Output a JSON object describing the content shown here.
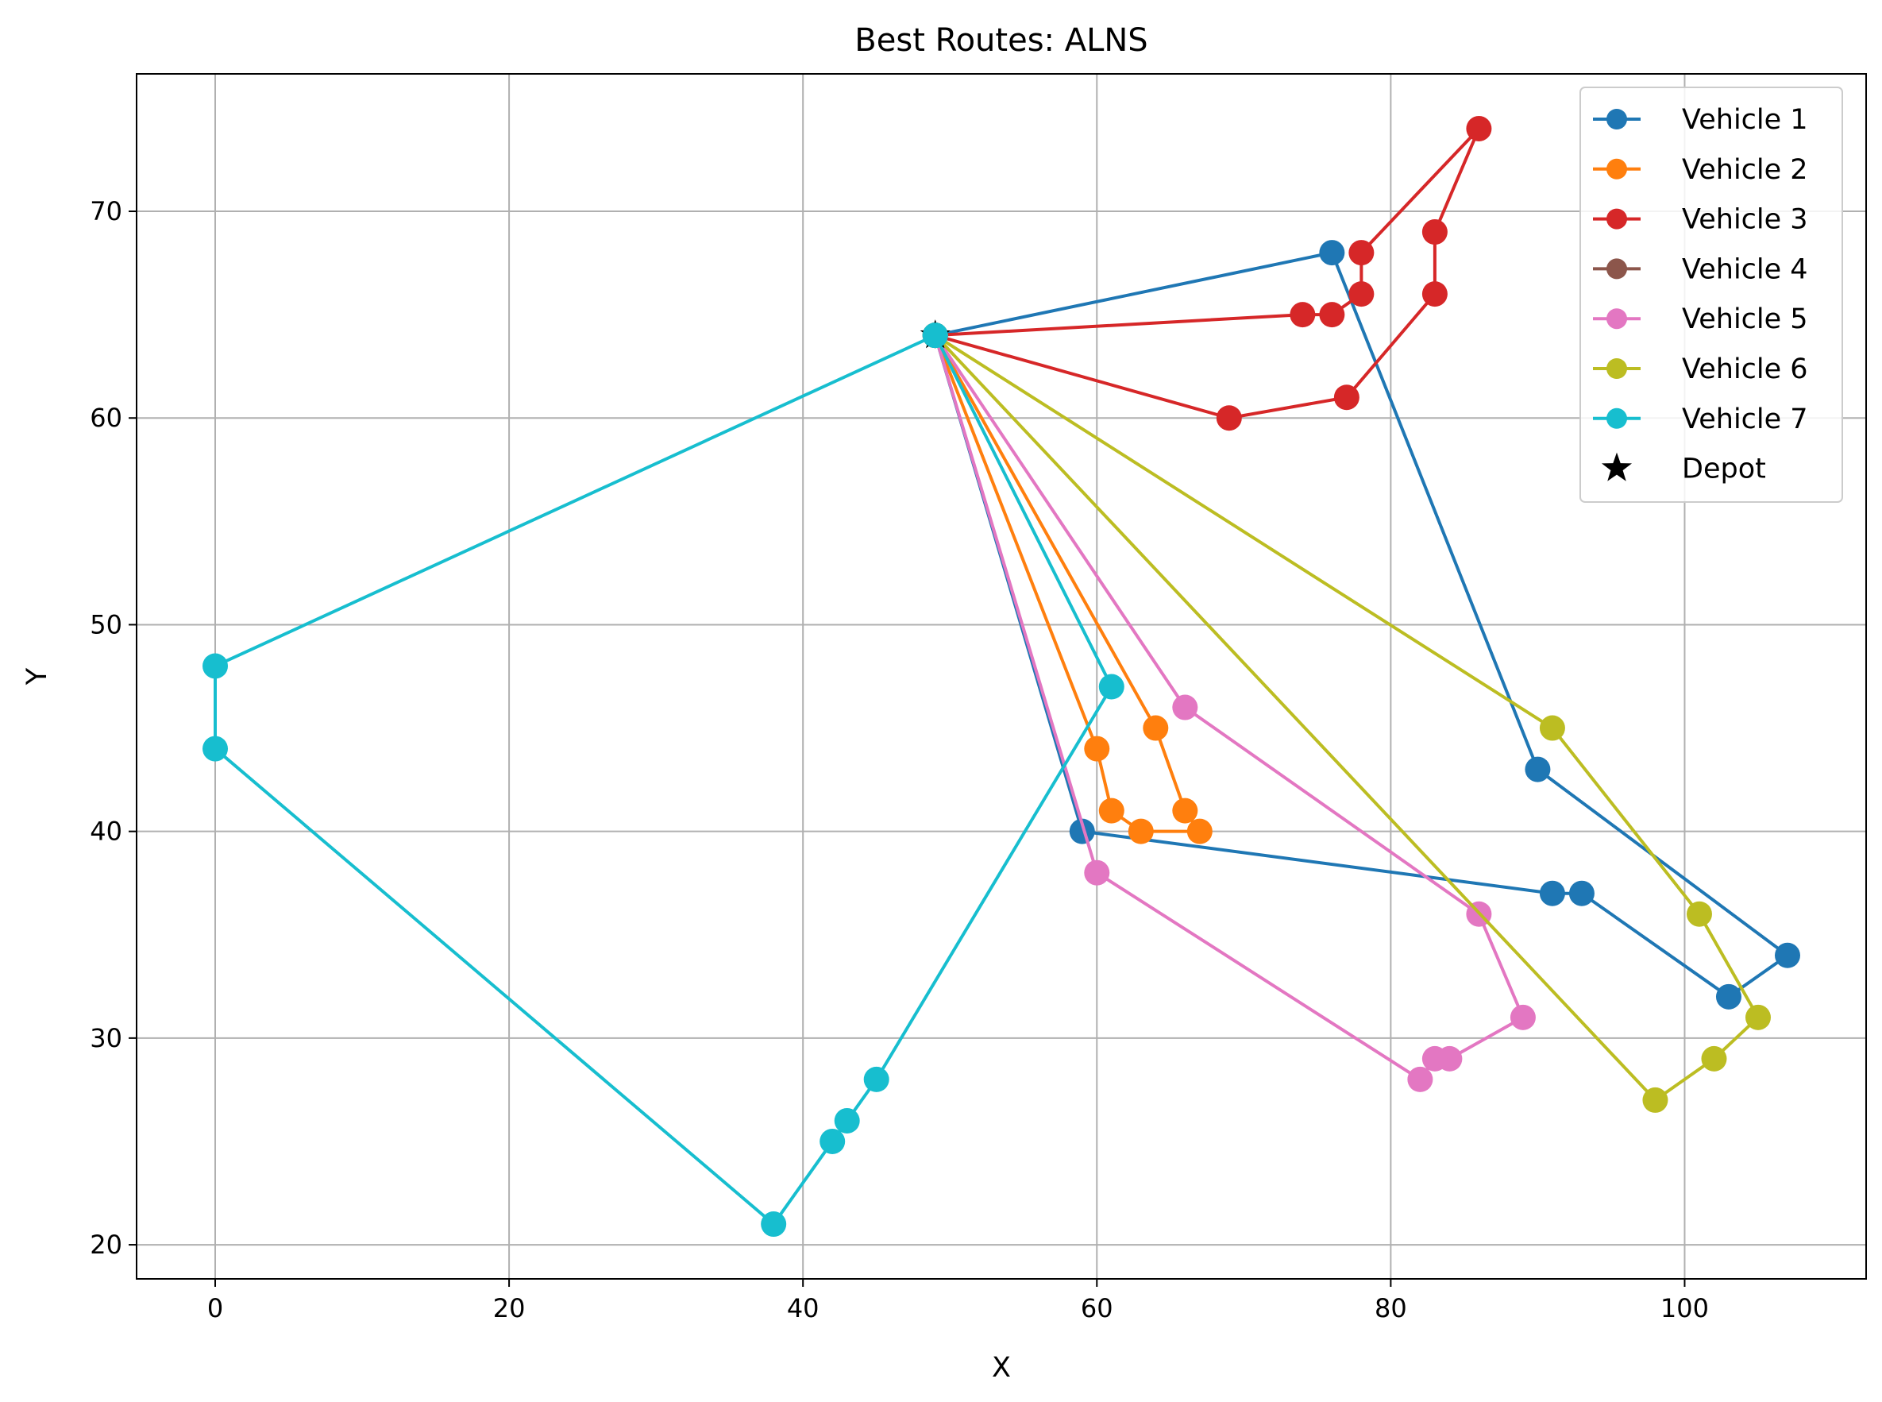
{
  "chart_data": {
    "type": "line",
    "title": "Best Routes: ALNS",
    "xlabel": "X",
    "ylabel": "Y",
    "xlim": [
      -5.35,
      112.35
    ],
    "ylim": [
      18.35,
      76.65
    ],
    "xticks": [
      0,
      20,
      40,
      60,
      80,
      100
    ],
    "yticks": [
      20,
      30,
      40,
      50,
      60,
      70
    ],
    "grid": true,
    "legend_position": "top-right",
    "depot": {
      "name": "Depot",
      "x": 49,
      "y": 64,
      "color": "#000000",
      "marker": "star"
    },
    "series": [
      {
        "name": "Vehicle 1",
        "color": "#1f77b4",
        "points": [
          [
            49,
            64
          ],
          [
            76,
            68
          ],
          [
            90,
            43
          ],
          [
            107,
            34
          ],
          [
            103,
            32
          ],
          [
            93,
            37
          ],
          [
            91,
            37
          ],
          [
            59,
            40
          ],
          [
            49,
            64
          ]
        ]
      },
      {
        "name": "Vehicle 2",
        "color": "#ff7f0e",
        "points": [
          [
            49,
            64
          ],
          [
            64,
            45
          ],
          [
            66,
            41
          ],
          [
            67,
            40
          ],
          [
            63,
            40
          ],
          [
            61,
            41
          ],
          [
            60,
            44
          ],
          [
            49,
            64
          ]
        ]
      },
      {
        "name": "Vehicle 3",
        "color": "#d62728",
        "points": [
          [
            49,
            64
          ],
          [
            69,
            60
          ],
          [
            77,
            61
          ],
          [
            83,
            66
          ],
          [
            83,
            69
          ],
          [
            86,
            74
          ],
          [
            78,
            68
          ],
          [
            78,
            66
          ],
          [
            76,
            65
          ],
          [
            74,
            65
          ],
          [
            49,
            64
          ]
        ]
      },
      {
        "name": "Vehicle 4",
        "color": "#8c564b",
        "points": [
          [
            49,
            64
          ]
        ]
      },
      {
        "name": "Vehicle 5",
        "color": "#e377c2",
        "points": [
          [
            49,
            64
          ],
          [
            66,
            46
          ],
          [
            86,
            36
          ],
          [
            89,
            31
          ],
          [
            84,
            29
          ],
          [
            83,
            29
          ],
          [
            82,
            28
          ],
          [
            60,
            38
          ],
          [
            49,
            64
          ]
        ]
      },
      {
        "name": "Vehicle 6",
        "color": "#bcbd22",
        "points": [
          [
            49,
            64
          ],
          [
            91,
            45
          ],
          [
            101,
            36
          ],
          [
            105,
            31
          ],
          [
            102,
            29
          ],
          [
            98,
            27
          ],
          [
            49,
            64
          ]
        ]
      },
      {
        "name": "Vehicle 7",
        "color": "#17becf",
        "points": [
          [
            49,
            64
          ],
          [
            0,
            48
          ],
          [
            0,
            44
          ],
          [
            38,
            21
          ],
          [
            42,
            25
          ],
          [
            43,
            26
          ],
          [
            45,
            28
          ],
          [
            61,
            47
          ],
          [
            49,
            64
          ]
        ]
      }
    ]
  }
}
